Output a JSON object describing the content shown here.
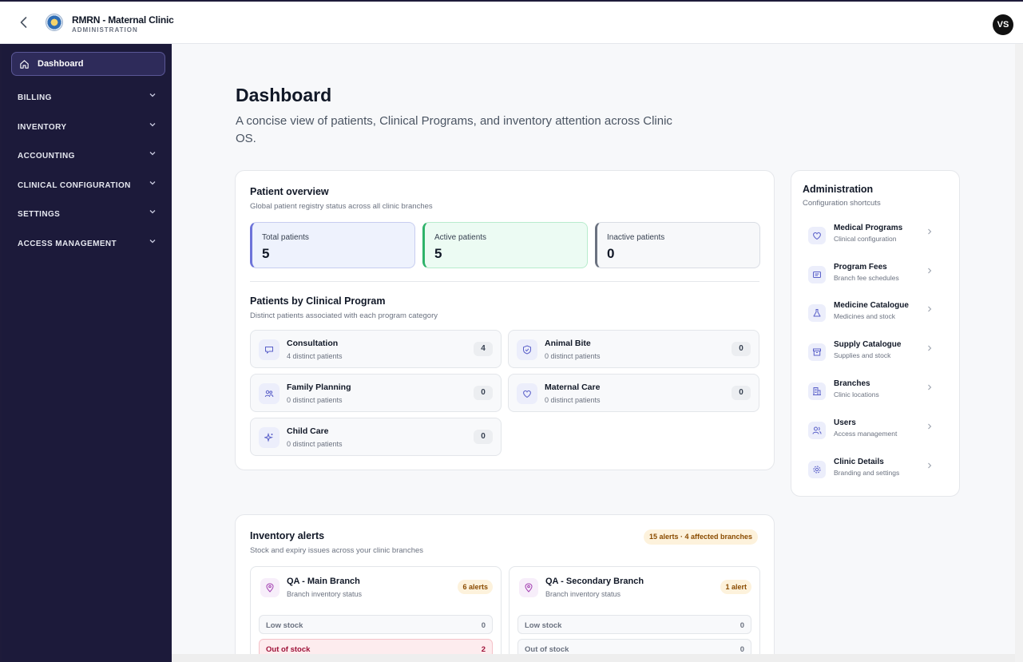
{
  "app": {
    "title": "RMRN - Maternal Clinic",
    "subtitle": "ADMINISTRATION",
    "user_initials": "VS"
  },
  "sidebar": {
    "active": {
      "label": "Dashboard",
      "icon": "home-icon"
    },
    "sections": [
      {
        "label": "BILLING"
      },
      {
        "label": "INVENTORY"
      },
      {
        "label": "ACCOUNTING"
      },
      {
        "label": "CLINICAL CONFIGURATION"
      },
      {
        "label": "SETTINGS"
      },
      {
        "label": "ACCESS MANAGEMENT"
      }
    ]
  },
  "page": {
    "title": "Dashboard",
    "description": "A concise view of patients, Clinical Programs, and inventory attention across Clinic OS."
  },
  "patient_overview": {
    "title": "Patient overview",
    "subtitle": "Global patient registry status across all clinic branches",
    "stats": [
      {
        "label": "Total patients",
        "value": "5"
      },
      {
        "label": "Active patients",
        "value": "5"
      },
      {
        "label": "Inactive patients",
        "value": "0"
      }
    ],
    "programs_title": "Patients by Clinical Program",
    "programs_subtitle": "Distinct patients associated with each program category",
    "programs": [
      {
        "name": "Consultation",
        "desc": "4 distinct patients",
        "count": "4",
        "icon": "chat-icon"
      },
      {
        "name": "Animal Bite",
        "desc": "0 distinct patients",
        "count": "0",
        "icon": "shield-icon"
      },
      {
        "name": "Family Planning",
        "desc": "0 distinct patients",
        "count": "0",
        "icon": "family-icon"
      },
      {
        "name": "Maternal Care",
        "desc": "0 distinct patients",
        "count": "0",
        "icon": "heart-icon"
      },
      {
        "name": "Child Care",
        "desc": "0 distinct patients",
        "count": "0",
        "icon": "sparkle-icon"
      }
    ]
  },
  "administration": {
    "title": "Administration",
    "subtitle": "Configuration shortcuts",
    "items": [
      {
        "name": "Medical Programs",
        "desc": "Clinical configuration",
        "icon": "heart-icon"
      },
      {
        "name": "Program Fees",
        "desc": "Branch fee schedules",
        "icon": "receipt-icon"
      },
      {
        "name": "Medicine Catalogue",
        "desc": "Medicines and stock",
        "icon": "flask-icon"
      },
      {
        "name": "Supply Catalogue",
        "desc": "Supplies and stock",
        "icon": "box-icon"
      },
      {
        "name": "Branches",
        "desc": "Clinic locations",
        "icon": "building-icon"
      },
      {
        "name": "Users",
        "desc": "Access management",
        "icon": "users-icon"
      },
      {
        "name": "Clinic Details",
        "desc": "Branding and settings",
        "icon": "gear-icon"
      }
    ]
  },
  "inventory_alerts": {
    "title": "Inventory alerts",
    "subtitle": "Stock and expiry issues across your clinic branches",
    "summary_badge": "15 alerts · 4 affected branches",
    "branches": [
      {
        "name": "QA - Main Branch",
        "desc": "Branch inventory status",
        "badge": "6 alerts",
        "rows": [
          {
            "label": "Low stock",
            "value": "0"
          },
          {
            "label": "Out of stock",
            "value": "2"
          }
        ]
      },
      {
        "name": "QA - Secondary Branch",
        "desc": "Branch inventory status",
        "badge": "1 alert",
        "rows": [
          {
            "label": "Low stock",
            "value": "0"
          },
          {
            "label": "Out of stock",
            "value": "0"
          }
        ]
      }
    ]
  },
  "colors": {
    "sidebar_bg": "#1c1a3a",
    "accent": "#6d73d9",
    "alert_bg": "#fdf2dc",
    "danger": "#9f1239"
  }
}
